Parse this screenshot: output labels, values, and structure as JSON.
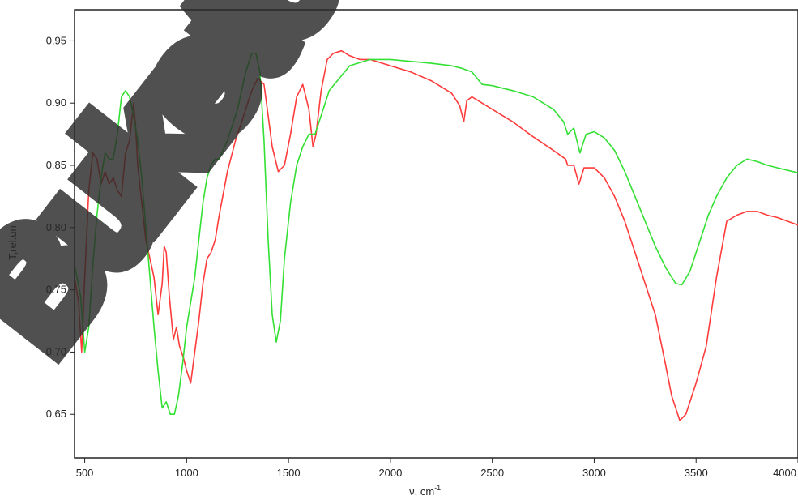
{
  "chart_data": {
    "type": "line",
    "xlabel": "ν, cm",
    "xlabel_superscript": "-1",
    "ylabel": "T,rel.un",
    "xlim": [
      450,
      4000
    ],
    "ylim": [
      0.615,
      0.975
    ],
    "x_ticks": [
      500,
      1000,
      1500,
      2000,
      2500,
      3000,
      3500,
      4000
    ],
    "x_tick_labels": [
      "500",
      "1000",
      "1500",
      "2000",
      "2500",
      "3000",
      "3500",
      "4000"
    ],
    "y_ticks": [
      0.65,
      0.7,
      0.75,
      0.8,
      0.85,
      0.9,
      0.95
    ],
    "y_tick_labels": [
      "0.65",
      "0.70",
      "0.75",
      "0.80",
      "0.85",
      "0.90",
      "0.95"
    ],
    "grid": false,
    "watermark": "Buketov",
    "series": [
      {
        "color": "#ff3b3b",
        "points": [
          [
            450,
            0.76
          ],
          [
            470,
            0.74
          ],
          [
            485,
            0.7
          ],
          [
            500,
            0.76
          ],
          [
            520,
            0.83
          ],
          [
            540,
            0.86
          ],
          [
            560,
            0.855
          ],
          [
            580,
            0.835
          ],
          [
            600,
            0.845
          ],
          [
            620,
            0.835
          ],
          [
            640,
            0.84
          ],
          [
            660,
            0.83
          ],
          [
            680,
            0.825
          ],
          [
            700,
            0.86
          ],
          [
            720,
            0.87
          ],
          [
            740,
            0.9
          ],
          [
            750,
            0.88
          ],
          [
            760,
            0.85
          ],
          [
            780,
            0.82
          ],
          [
            800,
            0.79
          ],
          [
            820,
            0.775
          ],
          [
            840,
            0.76
          ],
          [
            860,
            0.73
          ],
          [
            880,
            0.755
          ],
          [
            890,
            0.785
          ],
          [
            900,
            0.78
          ],
          [
            915,
            0.745
          ],
          [
            935,
            0.71
          ],
          [
            950,
            0.72
          ],
          [
            965,
            0.705
          ],
          [
            985,
            0.695
          ],
          [
            1000,
            0.685
          ],
          [
            1020,
            0.675
          ],
          [
            1040,
            0.7
          ],
          [
            1060,
            0.725
          ],
          [
            1080,
            0.755
          ],
          [
            1100,
            0.775
          ],
          [
            1120,
            0.78
          ],
          [
            1140,
            0.79
          ],
          [
            1160,
            0.81
          ],
          [
            1200,
            0.845
          ],
          [
            1240,
            0.87
          ],
          [
            1280,
            0.89
          ],
          [
            1320,
            0.91
          ],
          [
            1350,
            0.92
          ],
          [
            1380,
            0.915
          ],
          [
            1400,
            0.89
          ],
          [
            1420,
            0.865
          ],
          [
            1450,
            0.845
          ],
          [
            1480,
            0.85
          ],
          [
            1510,
            0.875
          ],
          [
            1540,
            0.905
          ],
          [
            1570,
            0.915
          ],
          [
            1600,
            0.895
          ],
          [
            1620,
            0.865
          ],
          [
            1635,
            0.875
          ],
          [
            1660,
            0.91
          ],
          [
            1690,
            0.935
          ],
          [
            1720,
            0.94
          ],
          [
            1760,
            0.942
          ],
          [
            1800,
            0.938
          ],
          [
            1850,
            0.935
          ],
          [
            1900,
            0.935
          ],
          [
            2000,
            0.93
          ],
          [
            2100,
            0.925
          ],
          [
            2200,
            0.918
          ],
          [
            2300,
            0.908
          ],
          [
            2340,
            0.898
          ],
          [
            2360,
            0.885
          ],
          [
            2375,
            0.902
          ],
          [
            2400,
            0.905
          ],
          [
            2500,
            0.895
          ],
          [
            2600,
            0.885
          ],
          [
            2700,
            0.873
          ],
          [
            2800,
            0.862
          ],
          [
            2860,
            0.855
          ],
          [
            2870,
            0.85
          ],
          [
            2900,
            0.85
          ],
          [
            2925,
            0.835
          ],
          [
            2950,
            0.848
          ],
          [
            3000,
            0.848
          ],
          [
            3050,
            0.84
          ],
          [
            3100,
            0.825
          ],
          [
            3150,
            0.805
          ],
          [
            3200,
            0.78
          ],
          [
            3250,
            0.755
          ],
          [
            3300,
            0.73
          ],
          [
            3350,
            0.69
          ],
          [
            3380,
            0.665
          ],
          [
            3420,
            0.645
          ],
          [
            3450,
            0.65
          ],
          [
            3500,
            0.675
          ],
          [
            3550,
            0.705
          ],
          [
            3600,
            0.76
          ],
          [
            3650,
            0.805
          ],
          [
            3700,
            0.81
          ],
          [
            3750,
            0.813
          ],
          [
            3800,
            0.813
          ],
          [
            3850,
            0.81
          ],
          [
            3900,
            0.808
          ],
          [
            3950,
            0.805
          ],
          [
            4000,
            0.802
          ]
        ]
      },
      {
        "color": "#33e033",
        "points": [
          [
            450,
            0.77
          ],
          [
            480,
            0.745
          ],
          [
            500,
            0.7
          ],
          [
            520,
            0.72
          ],
          [
            540,
            0.77
          ],
          [
            560,
            0.81
          ],
          [
            580,
            0.84
          ],
          [
            600,
            0.86
          ],
          [
            620,
            0.855
          ],
          [
            640,
            0.855
          ],
          [
            660,
            0.875
          ],
          [
            680,
            0.905
          ],
          [
            700,
            0.91
          ],
          [
            720,
            0.905
          ],
          [
            740,
            0.89
          ],
          [
            760,
            0.87
          ],
          [
            780,
            0.84
          ],
          [
            800,
            0.8
          ],
          [
            820,
            0.76
          ],
          [
            840,
            0.72
          ],
          [
            860,
            0.685
          ],
          [
            880,
            0.655
          ],
          [
            900,
            0.66
          ],
          [
            920,
            0.65
          ],
          [
            940,
            0.65
          ],
          [
            960,
            0.665
          ],
          [
            980,
            0.69
          ],
          [
            1000,
            0.72
          ],
          [
            1020,
            0.74
          ],
          [
            1040,
            0.76
          ],
          [
            1060,
            0.79
          ],
          [
            1080,
            0.82
          ],
          [
            1100,
            0.84
          ],
          [
            1120,
            0.85
          ],
          [
            1140,
            0.855
          ],
          [
            1160,
            0.855
          ],
          [
            1200,
            0.87
          ],
          [
            1250,
            0.895
          ],
          [
            1290,
            0.925
          ],
          [
            1320,
            0.94
          ],
          [
            1340,
            0.94
          ],
          [
            1360,
            0.925
          ],
          [
            1380,
            0.87
          ],
          [
            1400,
            0.79
          ],
          [
            1420,
            0.73
          ],
          [
            1440,
            0.708
          ],
          [
            1460,
            0.725
          ],
          [
            1480,
            0.775
          ],
          [
            1510,
            0.82
          ],
          [
            1540,
            0.85
          ],
          [
            1570,
            0.865
          ],
          [
            1600,
            0.875
          ],
          [
            1630,
            0.875
          ],
          [
            1660,
            0.89
          ],
          [
            1700,
            0.91
          ],
          [
            1750,
            0.92
          ],
          [
            1800,
            0.93
          ],
          [
            1900,
            0.935
          ],
          [
            2000,
            0.935
          ],
          [
            2200,
            0.932
          ],
          [
            2300,
            0.93
          ],
          [
            2350,
            0.928
          ],
          [
            2400,
            0.925
          ],
          [
            2450,
            0.915
          ],
          [
            2500,
            0.914
          ],
          [
            2600,
            0.91
          ],
          [
            2700,
            0.905
          ],
          [
            2800,
            0.895
          ],
          [
            2850,
            0.885
          ],
          [
            2870,
            0.875
          ],
          [
            2900,
            0.88
          ],
          [
            2930,
            0.86
          ],
          [
            2960,
            0.875
          ],
          [
            3000,
            0.877
          ],
          [
            3050,
            0.872
          ],
          [
            3100,
            0.862
          ],
          [
            3150,
            0.845
          ],
          [
            3200,
            0.825
          ],
          [
            3250,
            0.805
          ],
          [
            3300,
            0.785
          ],
          [
            3350,
            0.768
          ],
          [
            3400,
            0.755
          ],
          [
            3430,
            0.754
          ],
          [
            3470,
            0.765
          ],
          [
            3520,
            0.79
          ],
          [
            3560,
            0.81
          ],
          [
            3600,
            0.825
          ],
          [
            3650,
            0.84
          ],
          [
            3700,
            0.85
          ],
          [
            3750,
            0.855
          ],
          [
            3800,
            0.853
          ],
          [
            3850,
            0.85
          ],
          [
            3900,
            0.848
          ],
          [
            3950,
            0.846
          ],
          [
            4000,
            0.844
          ]
        ]
      }
    ]
  }
}
